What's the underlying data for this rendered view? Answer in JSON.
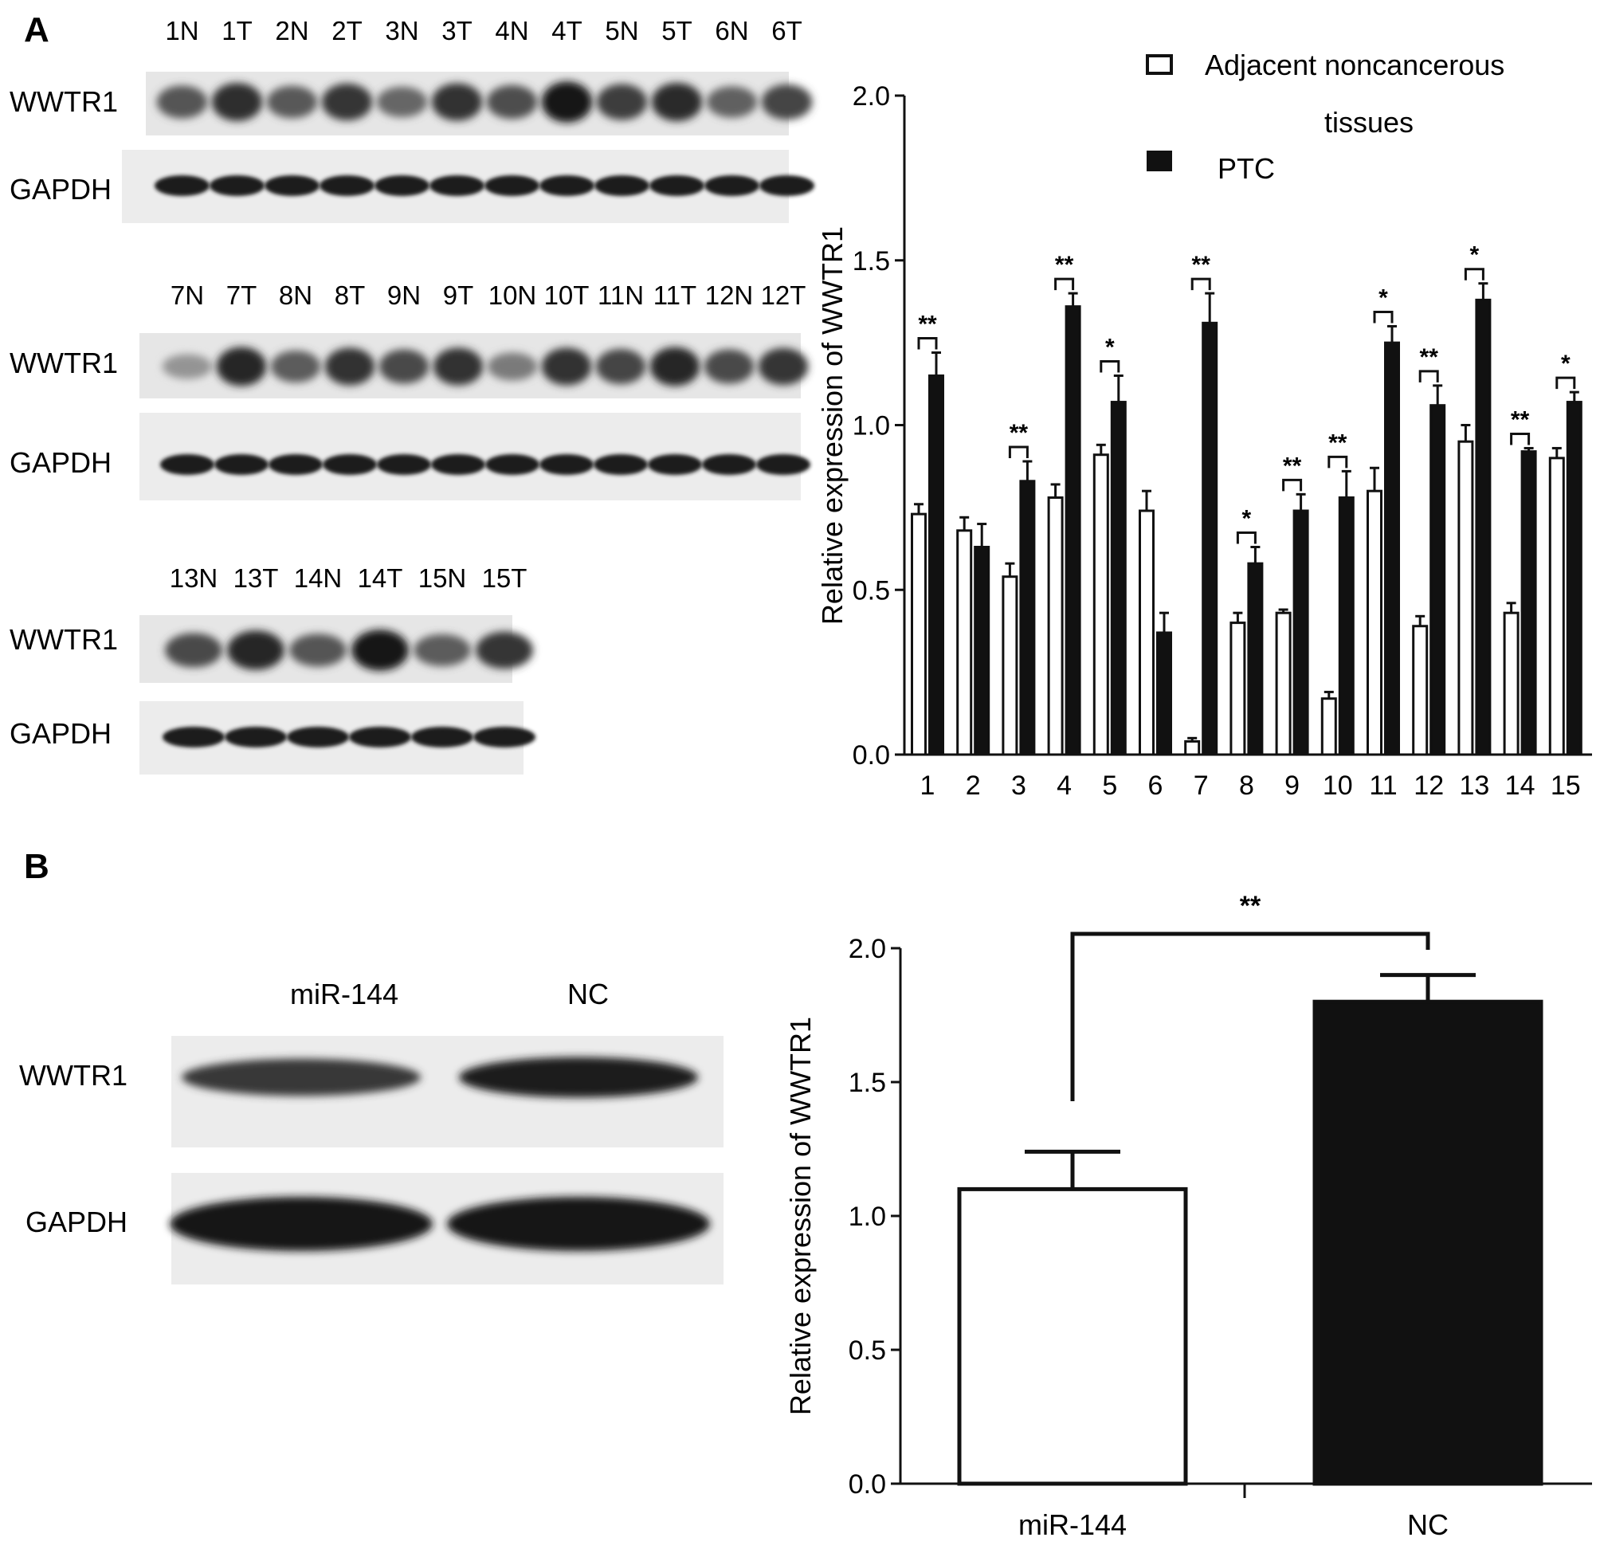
{
  "panel_a": {
    "letter": "A",
    "blot1": {
      "lanes": [
        "1N",
        "1T",
        "2N",
        "2T",
        "3N",
        "3T",
        "4N",
        "4T",
        "5N",
        "5T",
        "6N",
        "6T"
      ],
      "band_intensity": [
        0.62,
        0.85,
        0.6,
        0.8,
        0.52,
        0.82,
        0.66,
        0.97,
        0.76,
        0.86,
        0.55,
        0.72
      ],
      "row_labels": [
        "WWTR1",
        "GAPDH"
      ]
    },
    "blot2": {
      "lanes": [
        "7N",
        "7T",
        "8N",
        "8T",
        "9N",
        "9T",
        "10N",
        "10T",
        "11N",
        "11T",
        "12N",
        "12T"
      ],
      "band_intensity": [
        0.25,
        0.88,
        0.58,
        0.82,
        0.68,
        0.82,
        0.4,
        0.82,
        0.72,
        0.88,
        0.68,
        0.8
      ],
      "row_labels": [
        "WWTR1",
        "GAPDH"
      ]
    },
    "blot3": {
      "lanes": [
        "13N",
        "13T",
        "14N",
        "14T",
        "15N",
        "15T"
      ],
      "band_intensity": [
        0.68,
        0.9,
        0.62,
        0.97,
        0.58,
        0.8
      ],
      "row_labels": [
        "WWTR1",
        "GAPDH"
      ]
    }
  },
  "panel_b": {
    "letter": "B",
    "lane_labels": [
      "miR-144",
      "NC"
    ],
    "band_intensity": [
      0.78,
      0.95
    ],
    "row_labels": [
      "WWTR1",
      "GAPDH"
    ]
  },
  "chart_data": [
    {
      "type": "bar",
      "ylabel": "Relative expression of WWTR1",
      "ylim": [
        0,
        2.0
      ],
      "yticks": [
        "0.0",
        "0.5",
        "1.0",
        "1.5",
        "2.0"
      ],
      "categories": [
        "1",
        "2",
        "3",
        "4",
        "5",
        "6",
        "7",
        "8",
        "9",
        "10",
        "11",
        "12",
        "13",
        "14",
        "15"
      ],
      "legend_lines": [
        "Adjacent noncancerous",
        "tissues",
        "PTC"
      ],
      "legend_position": "top-right",
      "series": [
        {
          "name": "Adjacent noncancerous tissues",
          "color": "#ffffff",
          "values": [
            0.73,
            0.68,
            0.54,
            0.78,
            0.91,
            0.74,
            0.04,
            0.4,
            0.43,
            0.17,
            0.8,
            0.39,
            0.95,
            0.43,
            0.9
          ],
          "errors": [
            0.03,
            0.04,
            0.04,
            0.04,
            0.03,
            0.06,
            0.01,
            0.03,
            0.01,
            0.02,
            0.07,
            0.03,
            0.05,
            0.03,
            0.03
          ]
        },
        {
          "name": "PTC",
          "color": "#111111",
          "values": [
            1.15,
            0.63,
            0.83,
            1.36,
            1.07,
            0.37,
            1.31,
            0.58,
            0.74,
            0.78,
            1.25,
            1.06,
            1.38,
            0.92,
            1.07
          ],
          "errors": [
            0.07,
            0.07,
            0.06,
            0.04,
            0.08,
            0.06,
            0.09,
            0.05,
            0.05,
            0.08,
            0.05,
            0.06,
            0.05,
            0.01,
            0.03
          ]
        }
      ],
      "significance": [
        "**",
        "",
        "**",
        "**",
        "*",
        "",
        "**",
        "*",
        "**",
        "**",
        "*",
        "**",
        "*",
        "**",
        "*"
      ]
    },
    {
      "type": "bar",
      "ylabel": "Relative expression of WWTR1",
      "ylim": [
        0,
        2.0
      ],
      "yticks": [
        "0.0",
        "0.5",
        "1.0",
        "1.5",
        "2.0"
      ],
      "categories": [
        "miR-144",
        "NC"
      ],
      "series": [
        {
          "values": [
            1.1,
            1.8
          ],
          "errors": [
            0.14,
            0.1
          ],
          "colors": [
            "#ffffff",
            "#111111"
          ]
        }
      ],
      "significance": "**"
    }
  ]
}
